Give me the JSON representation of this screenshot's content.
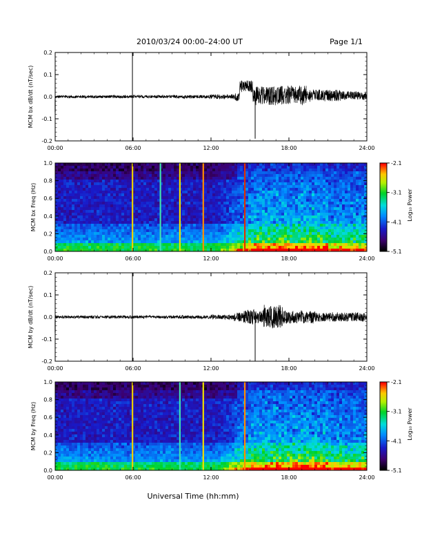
{
  "header": {
    "title": "2010/03/24  00:00–24:00 UT",
    "page_label": "Page 1/1"
  },
  "footer": {
    "xlabel": "Universal Time (hh:mm)"
  },
  "colorbar": {
    "label": "Log₁₀ Power",
    "ticks": [
      "-2.1",
      "-3.1",
      "-4.1",
      "-5.1"
    ]
  },
  "chart_data": [
    {
      "type": "line",
      "ylabel": "MCM bx dB/dt (nT/sec)",
      "xlim": [
        0,
        24
      ],
      "ylim": [
        -0.2,
        0.2
      ],
      "xticks": [
        "00:00",
        "06:00",
        "12:00",
        "18:00",
        "24:00"
      ],
      "yticks": [
        "0.2",
        "0.1",
        "0.0",
        "-0.1",
        "-0.2"
      ],
      "events": [
        {
          "t": 5.95,
          "min": -0.2,
          "max": 0.2
        },
        {
          "t": 15.4,
          "min": -0.19,
          "max": 0.02
        }
      ]
    },
    {
      "type": "heatmap",
      "ylabel": "MCM bx Freq (Hz)",
      "xlim": [
        0,
        24
      ],
      "ylim": [
        0.0,
        1.0
      ],
      "xticks": [
        "00:00",
        "06:00",
        "12:00",
        "18:00",
        "24:00"
      ],
      "yticks": [
        "1.0",
        "0.8",
        "0.6",
        "0.4",
        "0.2",
        "0.0"
      ],
      "zlim": [
        -5.1,
        -2.1
      ],
      "colormap": "rainbow",
      "broadband_lines_hours": [
        5.95,
        8.1,
        9.6,
        11.4,
        14.6
      ]
    },
    {
      "type": "line",
      "ylabel": "MCM by dB/dt (nT/sec)",
      "xlim": [
        0,
        24
      ],
      "ylim": [
        -0.2,
        0.2
      ],
      "xticks": [
        "00:00",
        "06:00",
        "12:00",
        "18:00",
        "24:00"
      ],
      "yticks": [
        "0.2",
        "0.1",
        "0.0",
        "-0.1",
        "-0.2"
      ],
      "events": [
        {
          "t": 5.95,
          "min": -0.2,
          "max": 0.2
        },
        {
          "t": 15.4,
          "min": -0.2,
          "max": 0.02
        }
      ]
    },
    {
      "type": "heatmap",
      "ylabel": "MCM by Freq (Hz)",
      "xlim": [
        0,
        24
      ],
      "ylim": [
        0.0,
        1.0
      ],
      "xticks": [
        "00:00",
        "06:00",
        "12:00",
        "18:00",
        "24:00"
      ],
      "yticks": [
        "1.0",
        "0.8",
        "0.6",
        "0.4",
        "0.2",
        "0.0"
      ],
      "zlim": [
        -5.1,
        -2.1
      ],
      "colormap": "rainbow",
      "broadband_lines_hours": [
        5.95,
        9.6,
        11.4,
        14.6
      ]
    }
  ]
}
